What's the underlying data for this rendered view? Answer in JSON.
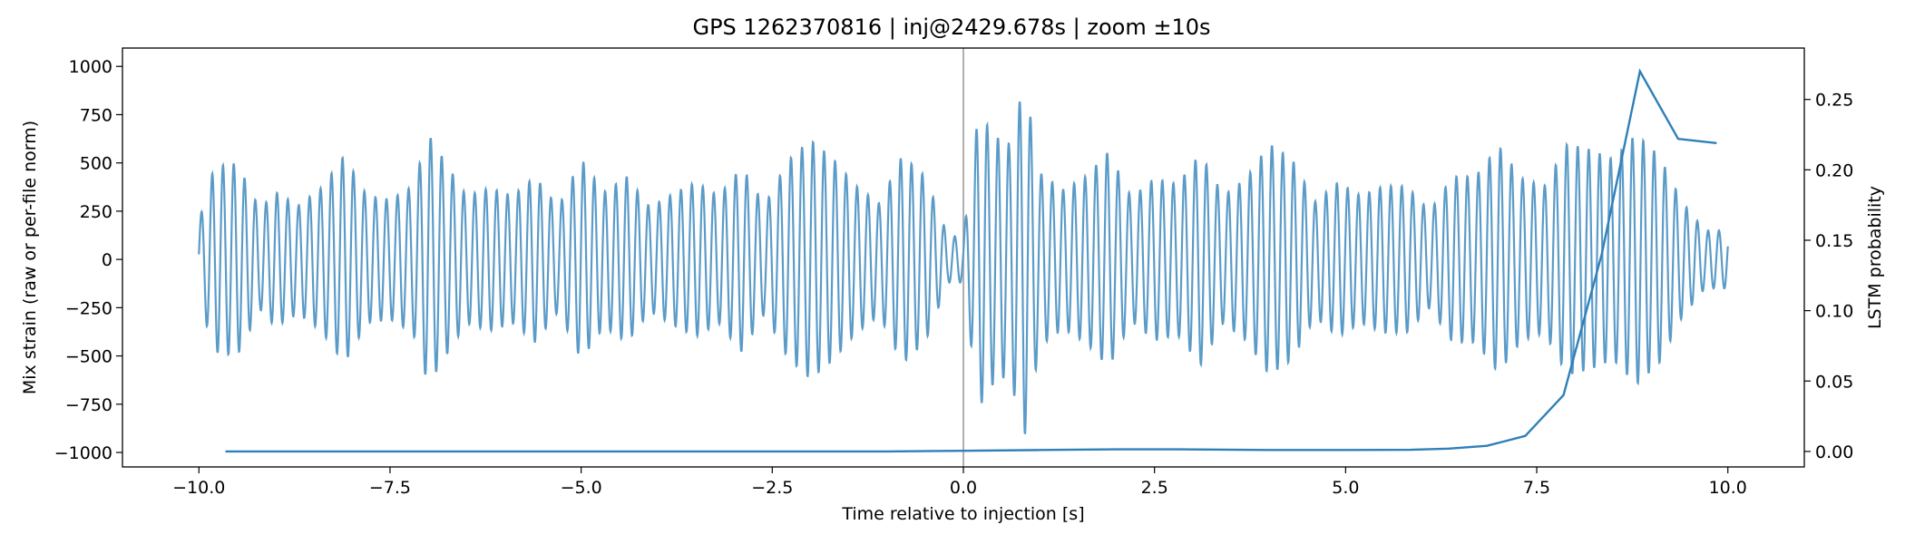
{
  "chart_data": {
    "type": "line",
    "title": "GPS 1262370816 | inj@2429.678s | zoom ±10s",
    "xlabel": "Time relative to injection [s]",
    "ylabel": "Mix strain (raw or per-file norm)",
    "ylabel_right": "LSTM probability",
    "xlim": [
      -11.0,
      11.0
    ],
    "ylim": [
      -1075,
      1095
    ],
    "ylim_right": [
      -0.011,
      0.2865
    ],
    "x_ticks": [
      -10.0,
      -7.5,
      -5.0,
      -2.5,
      0.0,
      2.5,
      5.0,
      7.5,
      10.0
    ],
    "x_tick_labels": [
      "−10.0",
      "−7.5",
      "−5.0",
      "−2.5",
      "0.0",
      "2.5",
      "5.0",
      "7.5",
      "10.0"
    ],
    "y_ticks": [
      -1000,
      -750,
      -500,
      -250,
      0,
      250,
      500,
      750,
      1000
    ],
    "y_tick_labels": [
      "−1000",
      "−750",
      "−500",
      "−250",
      "0",
      "250",
      "500",
      "750",
      "1000"
    ],
    "y_ticks_right": [
      0.0,
      0.05,
      0.1,
      0.15,
      0.2,
      0.25
    ],
    "y_tick_labels_right": [
      "0.00",
      "0.05",
      "0.10",
      "0.15",
      "0.20",
      "0.25"
    ],
    "grid": false,
    "injection_line_x": 0.0,
    "colors": {
      "strain": "#5b9bc8",
      "prob": "#2f7fb8",
      "vline": "#b0b0b0"
    },
    "series": [
      {
        "kind": "strain",
        "axis": "left",
        "carrier_hz": 7.0,
        "x_range": [
          -10.0,
          10.0
        ],
        "envelope": {
          "x": [
            -10.0,
            -9.8,
            -9.5,
            -9.2,
            -9.0,
            -8.7,
            -8.4,
            -8.1,
            -7.8,
            -7.5,
            -7.2,
            -7.0,
            -6.8,
            -6.5,
            -6.2,
            -5.9,
            -5.6,
            -5.3,
            -5.0,
            -4.7,
            -4.4,
            -4.1,
            -3.8,
            -3.5,
            -3.2,
            -2.9,
            -2.6,
            -2.3,
            -2.0,
            -1.7,
            -1.4,
            -1.1,
            -0.8,
            -0.5,
            -0.2,
            0.0,
            0.2,
            0.4,
            0.6,
            0.8,
            1.0,
            1.3,
            1.6,
            1.9,
            2.2,
            2.5,
            2.8,
            3.1,
            3.4,
            3.7,
            4.0,
            4.3,
            4.6,
            4.9,
            5.2,
            5.5,
            5.8,
            6.1,
            6.4,
            6.7,
            7.0,
            7.3,
            7.6,
            7.9,
            8.2,
            8.5,
            8.8,
            9.1,
            9.4,
            9.7,
            10.0
          ],
          "amp": [
            200,
            480,
            500,
            260,
            350,
            280,
            370,
            540,
            330,
            310,
            380,
            650,
            520,
            330,
            370,
            330,
            430,
            270,
            520,
            350,
            430,
            270,
            340,
            400,
            330,
            480,
            280,
            510,
            620,
            520,
            380,
            290,
            540,
            430,
            120,
            120,
            770,
            640,
            600,
            920,
            450,
            360,
            430,
            560,
            320,
            420,
            390,
            550,
            330,
            420,
            600,
            520,
            300,
            400,
            330,
            380,
            380,
            250,
            430,
            430,
            590,
            420,
            380,
            600,
            570,
            520,
            650,
            540,
            300,
            150,
            150
          ]
        }
      },
      {
        "kind": "probability",
        "axis": "right",
        "x": [
          -9.65,
          -9.0,
          -8.0,
          -7.0,
          -6.0,
          -5.0,
          -4.0,
          -3.0,
          -2.0,
          -1.0,
          0.0,
          1.0,
          2.0,
          2.8,
          4.0,
          5.0,
          5.85,
          6.35,
          6.85,
          7.35,
          7.85,
          8.35,
          8.85,
          9.35,
          9.85
        ],
        "y": [
          0.0,
          0.0,
          0.0,
          0.0,
          0.0,
          0.0,
          0.0,
          0.0,
          0.0,
          0.0,
          0.0005,
          0.001,
          0.0015,
          0.0015,
          0.001,
          0.001,
          0.0012,
          0.002,
          0.004,
          0.011,
          0.04,
          0.14,
          0.27,
          0.222,
          0.219
        ]
      }
    ]
  }
}
